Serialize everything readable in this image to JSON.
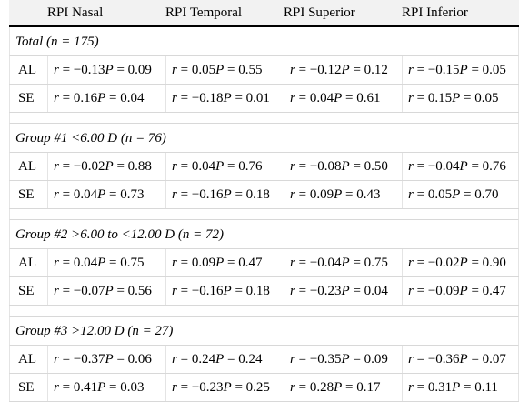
{
  "columns": [
    "RPI Nasal",
    "RPI Temporal",
    "RPI Superior",
    "RPI Inferior"
  ],
  "groups": [
    {
      "title": "Total (n = 175)",
      "rows": [
        {
          "label": "AL",
          "cells": [
            {
              "r": "−0.13",
              "p": "0.09"
            },
            {
              "r": "0.05",
              "p": "0.55"
            },
            {
              "r": "−0.12",
              "p": "0.12"
            },
            {
              "r": "−0.15",
              "p": "0.05"
            }
          ]
        },
        {
          "label": "SE",
          "cells": [
            {
              "r": "0.16",
              "p": "0.04"
            },
            {
              "r": "−0.18",
              "p": "0.01"
            },
            {
              "r": "0.04",
              "p": "0.61"
            },
            {
              "r": "0.15",
              "p": "0.05"
            }
          ]
        }
      ]
    },
    {
      "title": "Group #1 <6.00 D (n = 76)",
      "rows": [
        {
          "label": "AL",
          "cells": [
            {
              "r": "−0.02",
              "p": "0.88"
            },
            {
              "r": "0.04",
              "p": "0.76"
            },
            {
              "r": "−0.08",
              "p": "0.50"
            },
            {
              "r": "−0.04",
              "p": "0.76"
            }
          ]
        },
        {
          "label": "SE",
          "cells": [
            {
              "r": "0.04",
              "p": "0.73"
            },
            {
              "r": "−0.16",
              "p": "0.18"
            },
            {
              "r": "0.09",
              "p": "0.43"
            },
            {
              "r": "0.05",
              "p": "0.70"
            }
          ]
        }
      ]
    },
    {
      "title": "Group #2 >6.00 to <12.00 D (n = 72)",
      "rows": [
        {
          "label": "AL",
          "cells": [
            {
              "r": "0.04",
              "p": "0.75"
            },
            {
              "r": "0.09",
              "p": "0.47"
            },
            {
              "r": "−0.04",
              "p": "0.75"
            },
            {
              "r": "−0.02",
              "p": "0.90"
            }
          ]
        },
        {
          "label": "SE",
          "cells": [
            {
              "r": "−0.07",
              "p": "0.56"
            },
            {
              "r": "−0.16",
              "p": "0.18"
            },
            {
              "r": "−0.23",
              "p": "0.04"
            },
            {
              "r": "−0.09",
              "p": "0.47"
            }
          ]
        }
      ]
    },
    {
      "title": "Group #3 >12.00 D (n = 27)",
      "rows": [
        {
          "label": "AL",
          "cells": [
            {
              "r": "−0.37",
              "p": "0.06"
            },
            {
              "r": "0.24",
              "p": "0.24"
            },
            {
              "r": "−0.35",
              "p": "0.09"
            },
            {
              "r": "−0.36",
              "p": "0.07"
            }
          ]
        },
        {
          "label": "SE",
          "cells": [
            {
              "r": "0.41",
              "p": "0.03"
            },
            {
              "r": "−0.23",
              "p": "0.25"
            },
            {
              "r": "0.28",
              "p": "0.17"
            },
            {
              "r": "0.31",
              "p": "0.11"
            }
          ]
        }
      ]
    }
  ]
}
